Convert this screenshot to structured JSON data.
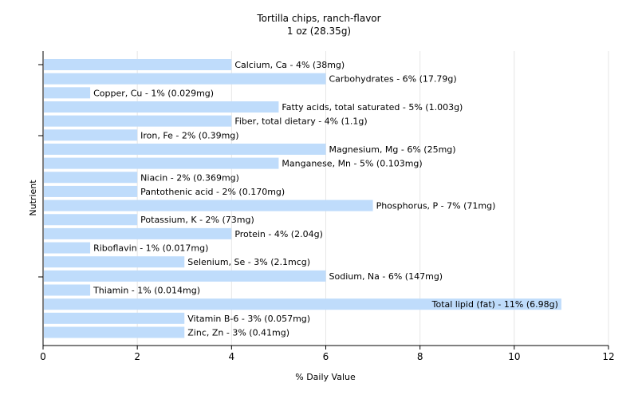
{
  "chart_data": {
    "type": "bar",
    "orientation": "horizontal",
    "title": "Tortilla chips, ranch-flavor",
    "subtitle": "1 oz (28.35g)",
    "xlabel": "% Daily Value",
    "ylabel": "Nutrient",
    "xlim": [
      0,
      12
    ],
    "xticks": [
      0,
      2,
      4,
      6,
      8,
      10,
      12
    ],
    "grid": true,
    "bar_color": "#bfdcfb",
    "categories": [
      "Calcium, Ca",
      "Carbohydrates",
      "Copper, Cu",
      "Fatty acids, total saturated",
      "Fiber, total dietary",
      "Iron, Fe",
      "Magnesium, Mg",
      "Manganese, Mn",
      "Niacin",
      "Pantothenic acid",
      "Phosphorus, P",
      "Potassium, K",
      "Protein",
      "Riboflavin",
      "Selenium, Se",
      "Sodium, Na",
      "Thiamin",
      "Total lipid (fat)",
      "Vitamin B-6",
      "Zinc, Zn"
    ],
    "values": [
      4,
      6,
      1,
      5,
      4,
      2,
      6,
      5,
      2,
      2,
      7,
      2,
      4,
      1,
      3,
      6,
      1,
      11,
      3,
      3
    ],
    "labels": [
      "Calcium, Ca - 4% (38mg)",
      "Carbohydrates - 6% (17.79g)",
      "Copper, Cu - 1% (0.029mg)",
      "Fatty acids, total saturated - 5% (1.003g)",
      "Fiber, total dietary - 4% (1.1g)",
      "Iron, Fe - 2% (0.39mg)",
      "Magnesium, Mg - 6% (25mg)",
      "Manganese, Mn - 5% (0.103mg)",
      "Niacin - 2% (0.369mg)",
      "Pantothenic acid - 2% (0.170mg)",
      "Phosphorus, P - 7% (71mg)",
      "Potassium, K - 2% (73mg)",
      "Protein - 4% (2.04g)",
      "Riboflavin - 1% (0.017mg)",
      "Selenium, Se - 3% (2.1mcg)",
      "Sodium, Na - 6% (147mg)",
      "Thiamin - 1% (0.014mg)",
      "Total lipid (fat) - 11% (6.98g)",
      "Vitamin B-6 - 3% (0.057mg)",
      "Zinc, Zn - 3% (0.41mg)"
    ]
  }
}
